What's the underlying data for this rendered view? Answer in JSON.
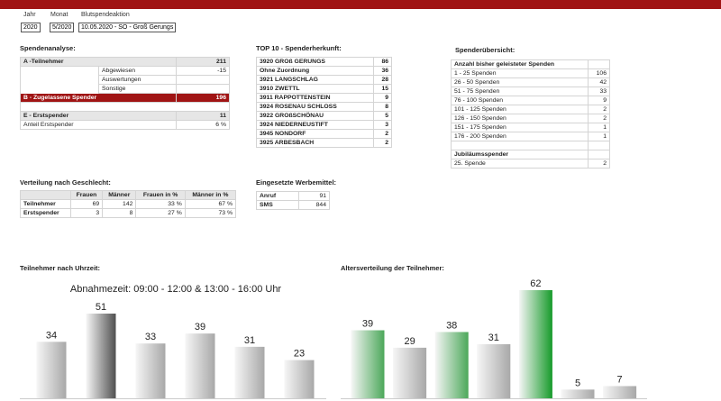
{
  "header": {
    "labels": [
      "Jahr",
      "Monat",
      "Blutspendeaktion"
    ],
    "values": [
      "2020",
      "5/2020",
      "10.05.2020 - SO - Groß Gerungs"
    ]
  },
  "spendenanalyse": {
    "title": "Spendenanalyse:",
    "rows": [
      [
        "A -Teilnehmer",
        211
      ],
      [
        "Abgewiesen",
        -15
      ],
      [
        "Auswertungen",
        null
      ],
      [
        "Sonstige",
        null
      ],
      [
        "B - Zugelassene Spender",
        196
      ],
      [
        "E - Erstspender",
        11
      ],
      [
        "Anteil Erstspender",
        "6 %"
      ]
    ]
  },
  "top10": {
    "title": "TOP 10 - Spenderherkunft:",
    "rows": [
      [
        "3920 GROß GERUNGS",
        86
      ],
      [
        "Ohne Zuordnung",
        36
      ],
      [
        "3921 LANGSCHLAG",
        28
      ],
      [
        "3910 ZWETTL",
        15
      ],
      [
        "3911 RAPPOTTENSTEIN",
        9
      ],
      [
        "3924 ROSENAU SCHLOSS",
        8
      ],
      [
        "3922 GROßSCHÖNAU",
        5
      ],
      [
        "3924 NIEDERNEUSTIFT",
        3
      ],
      [
        "3945 NONDORF",
        2
      ],
      [
        "3925 ARBESBACH",
        2
      ]
    ]
  },
  "uebersicht": {
    "title": "Spenderübersicht:",
    "header": "Anzahl bisher geleisteter Spenden",
    "rows": [
      [
        "1 - 25 Spenden",
        106
      ],
      [
        "26 - 50 Spenden",
        42
      ],
      [
        "51 - 75 Spenden",
        33
      ],
      [
        "76 - 100 Spenden",
        9
      ],
      [
        "101 - 125 Spenden",
        2
      ],
      [
        "126 - 150 Spenden",
        2
      ],
      [
        "151 - 175 Spenden",
        1
      ],
      [
        "176 - 200 Spenden",
        1
      ]
    ],
    "jubilaeum_header": "Jubiläumsspender",
    "jubilaeum_rows": [
      [
        "25. Spende",
        2
      ]
    ]
  },
  "geschlecht": {
    "title": "Verteilung nach Geschlecht:",
    "columns": [
      "Frauen",
      "Männer",
      "Frauen in %",
      "Männer in %"
    ],
    "rows": [
      {
        "label": "Teilnehmer",
        "values": [
          69,
          142,
          "33 %",
          "67 %"
        ]
      },
      {
        "label": "Erstspender",
        "values": [
          3,
          8,
          "27 %",
          "73 %"
        ]
      }
    ]
  },
  "werbemittel": {
    "title": "Eingesetzte Werbemittel:",
    "rows": [
      [
        "Anruf",
        91
      ],
      [
        "SMS",
        844
      ]
    ]
  },
  "chart_data": [
    {
      "type": "bar",
      "title": "Teilnehmer nach Uhrzeit:",
      "subtitle": "Abnahmezeit: 09:00 - 12:00 & 13:00 - 16:00 Uhr",
      "values": [
        34,
        51,
        33,
        39,
        31,
        23
      ],
      "colors": [
        "#a8a8a8",
        "#505050",
        "#a8a8a8",
        "#a8a8a8",
        "#a8a8a8",
        "#a8a8a8"
      ]
    },
    {
      "type": "bar",
      "title": "Altersverteilung der Teilnehmer:",
      "values": [
        39,
        29,
        38,
        31,
        62,
        5,
        7
      ],
      "colors": [
        "#4ca85a",
        "#a8a8a8",
        "#4ca85a",
        "#a8a8a8",
        "#169a2a",
        "#a8a8a8",
        "#a8a8a8"
      ]
    }
  ]
}
